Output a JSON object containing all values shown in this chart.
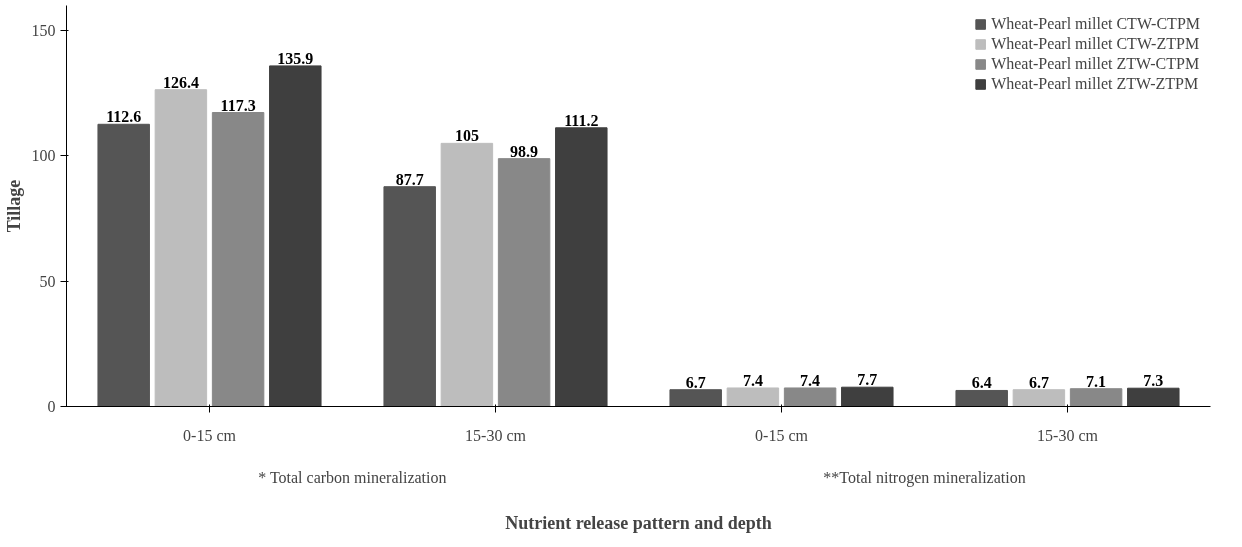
{
  "chart_data": {
    "type": "bar",
    "xlabel": "Nutrient release pattern and depth",
    "ylabel": "Tillage",
    "categories": [
      "0-15 cm",
      "15-30 cm",
      "0-15 cm",
      "15-30 cm"
    ],
    "series": [
      {
        "name": "Wheat-Pearl millet CTW-CTPM",
        "color": "#555555",
        "values": [
          112.6,
          87.7,
          6.7,
          6.4
        ]
      },
      {
        "name": "Wheat-Pearl millet CTW-ZTPM",
        "color": "#bdbdbd",
        "values": [
          126.4,
          105,
          7.4,
          6.7
        ]
      },
      {
        "name": "Wheat-Pearl millet ZTW-CTPM",
        "color": "#888888",
        "values": [
          117.3,
          98.9,
          7.4,
          7.1
        ]
      },
      {
        "name": "Wheat-Pearl millet ZTW-ZTPM",
        "color": "#3f3f3f",
        "values": [
          135.9,
          111.2,
          7.7,
          7.3
        ]
      }
    ],
    "annotations": [
      "* Total carbon mineralization",
      "**Total nitrogen mineralization"
    ],
    "ylim": [
      0,
      160
    ],
    "yticks": [
      0,
      50,
      100,
      150
    ],
    "data_labels": true,
    "legend": "top right",
    "grid": false
  }
}
